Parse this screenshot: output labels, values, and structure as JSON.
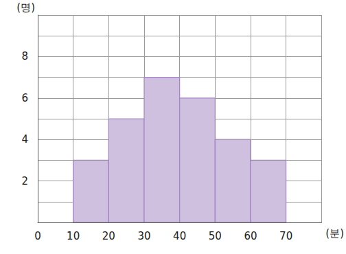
{
  "chart_data": {
    "type": "histogram",
    "bins": [
      10,
      20,
      30,
      40,
      50,
      60,
      70
    ],
    "values": [
      3,
      5,
      7,
      6,
      4,
      3
    ],
    "color": "#cfc0e0",
    "x_label": "(분)",
    "y_label": "(명)",
    "xlim": [
      0,
      80
    ],
    "xticks": [
      0,
      10,
      20,
      30,
      40,
      50,
      60,
      70
    ],
    "ylim": [
      0,
      10
    ],
    "yticks": [
      2,
      4,
      6,
      8
    ],
    "grid": true
  }
}
